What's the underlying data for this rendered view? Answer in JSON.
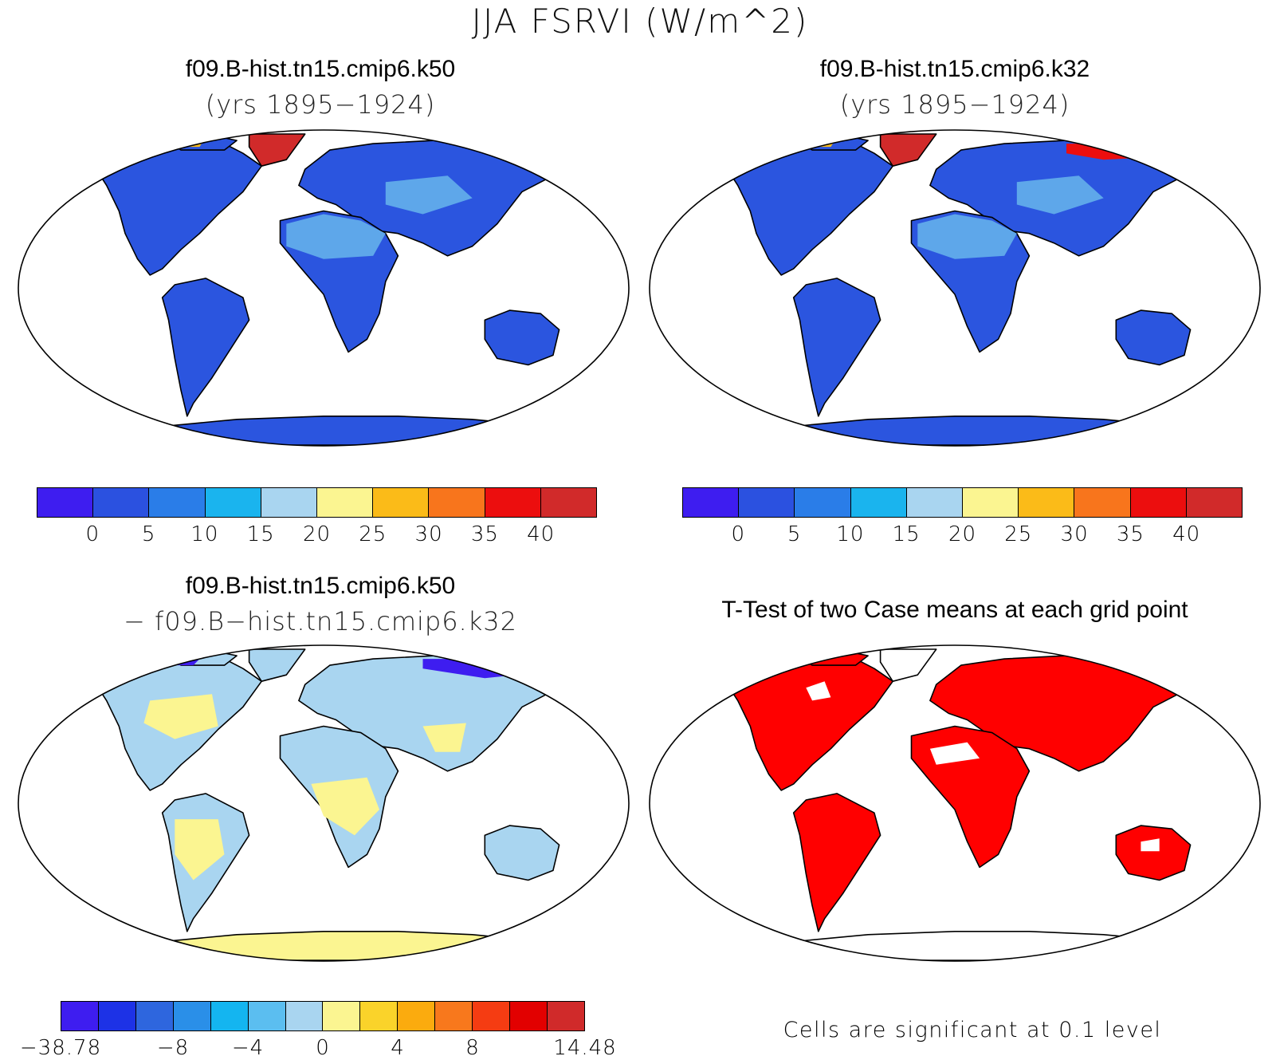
{
  "title": "JJA FSRVI (W/m^2)",
  "panels": {
    "top_left": {
      "title": "f09.B-hist.tn15.cmip6.k50",
      "subtitle": "(yrs 1895−1924)"
    },
    "top_right": {
      "title": "f09.B-hist.tn15.cmip6.k32",
      "subtitle": "(yrs 1895−1924)"
    },
    "bottom_left": {
      "title": "f09.B-hist.tn15.cmip6.k50",
      "subtitle": "− f09.B−hist.tn15.cmip6.k32"
    },
    "bottom_right": {
      "title": "T-Test of two Case means at each grid point",
      "note": "Cells are significant at 0.1 level"
    }
  },
  "colorbar_case": {
    "colors": [
      "#3e1df0",
      "#2b51e0",
      "#2a7de8",
      "#1ab4ee",
      "#a9d5f0",
      "#fbf591",
      "#fbbb18",
      "#f8751c",
      "#ec0e0e",
      "#d12a2a"
    ],
    "ticks": [
      "0",
      "5",
      "10",
      "15",
      "20",
      "25",
      "30",
      "35",
      "40"
    ]
  },
  "colorbar_diff": {
    "colors": [
      "#3e1df0",
      "#1d32e6",
      "#2e66de",
      "#2a8fe8",
      "#14b5f0",
      "#5bbef0",
      "#a9d5f0",
      "#fbf591",
      "#fad32a",
      "#fbab0e",
      "#f8781c",
      "#f53c12",
      "#e20000",
      "#d02a2a"
    ],
    "ticks": [
      "−38.78",
      "−8",
      "−4",
      "0",
      "4",
      "8",
      "14.48"
    ]
  },
  "map_fills": {
    "land_case": "#2b55df",
    "land_diff": "#a9d5f0",
    "land_ttest": "#ff0000",
    "greenland_case": "#d12a2a",
    "desert_case": "#5ea7ea",
    "arctic_diff": "#3e1df0",
    "highlat_diff": "#fbf591"
  }
}
